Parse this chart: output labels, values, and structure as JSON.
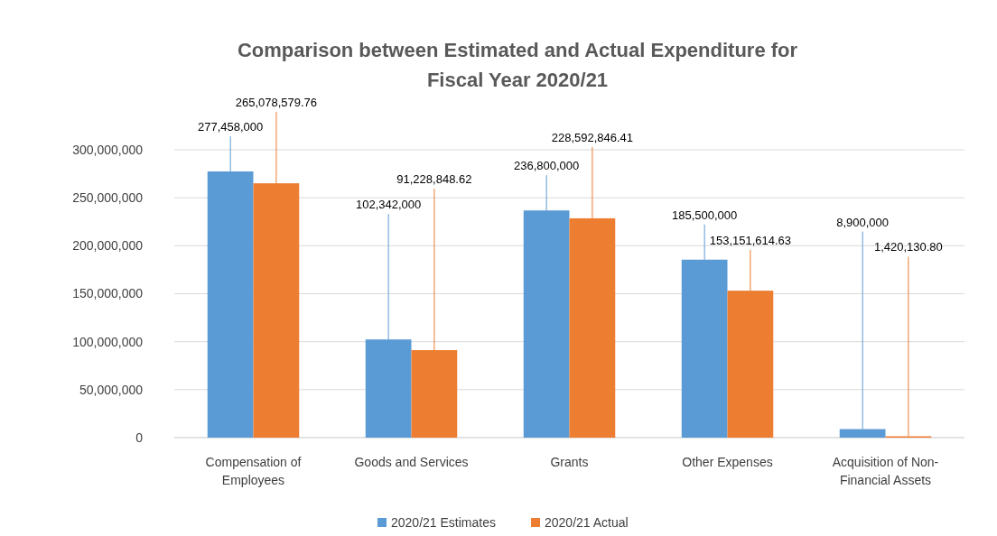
{
  "chart_data": {
    "type": "bar",
    "title": "Comparison between Estimated and Actual Expenditure for Fiscal Year 2020/21",
    "categories": [
      "Compensation of Employees",
      "Goods and Services",
      "Grants",
      "Other Expenses",
      "Acquisition of Non-Financial Assets"
    ],
    "series": [
      {
        "name": "2020/21 Estimates",
        "color": "#5b9bd5",
        "values": [
          277458000,
          102342000,
          236800000,
          185500000,
          8900000
        ],
        "value_labels": [
          "277,458,000",
          "102,342,000",
          "236,800,000",
          "185,500,000",
          "8,900,000"
        ]
      },
      {
        "name": "2020/21 Actual",
        "color": "#ed7d31",
        "values": [
          265078579.76,
          91228848.62,
          228592846.41,
          153151614.63,
          1420130.8
        ],
        "value_labels": [
          "265,078,579.76",
          "91,228,848.62",
          "228,592,846.41",
          "153,151,614.63",
          "1,420,130.80"
        ]
      }
    ],
    "ylim": [
      0,
      300000000
    ],
    "yticks": [
      {
        "value": 0,
        "label": "0"
      },
      {
        "value": 50000000,
        "label": "50,000,000"
      },
      {
        "value": 100000000,
        "label": "100,000,000"
      },
      {
        "value": 150000000,
        "label": "150,000,000"
      },
      {
        "value": 200000000,
        "label": "200,000,000"
      },
      {
        "value": 250000000,
        "label": "250,000,000"
      },
      {
        "value": 300000000,
        "label": "300,000,000"
      }
    ],
    "grid": "y",
    "legend": "bottom"
  }
}
